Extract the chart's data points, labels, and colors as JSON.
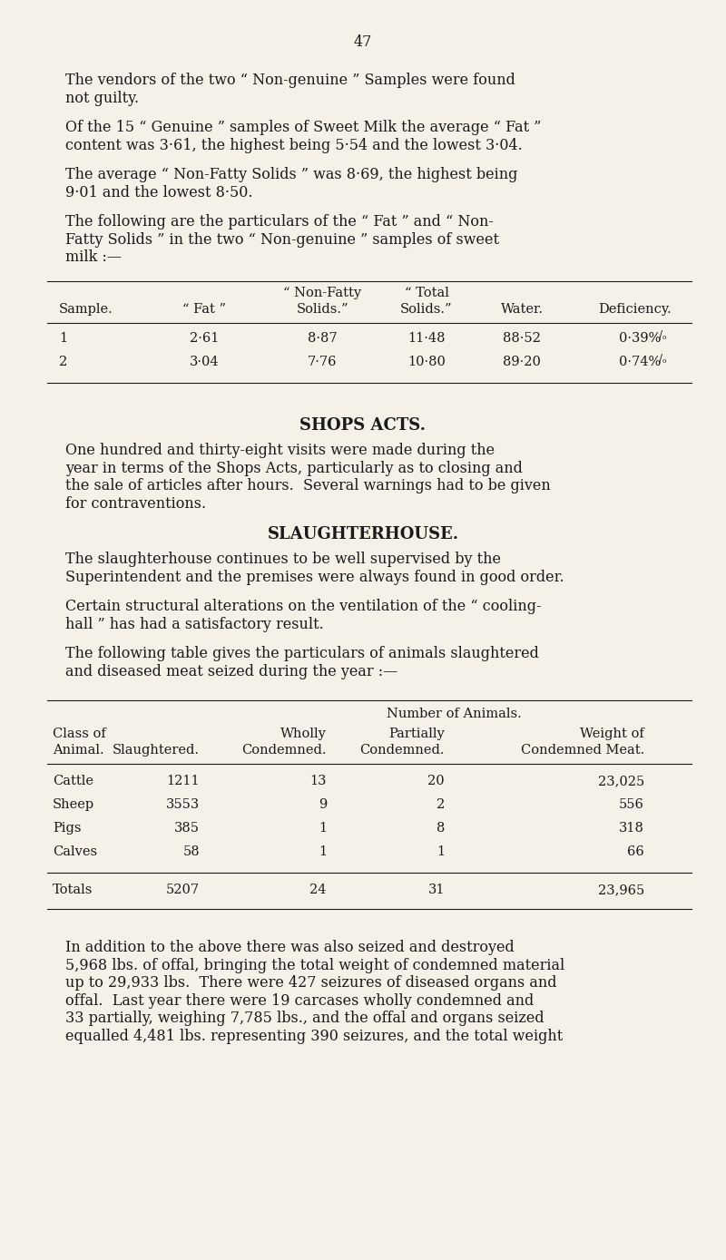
{
  "bg_color": "#f5f0e8",
  "text_color": "#1a1a1a",
  "page_number": "47",
  "paragraphs": [
    "The vendors of the two “ Non-genuine ” Samples were found\nnot guilty.",
    "Of the 15 “ Genuine ” samples of Sweet Milk the average “ Fat ”\ncontent was 3·61, the highest being 5·54 and the lowest 3·04.",
    "The average “ Non-Fatty Solids ” was 8·69, the highest being\n9·01 and the lowest 8·50.",
    "The following are the particulars of the “ Fat ” and “ Non-\nFatty Solids ” in the two “ Non-genuine ” samples of sweet\nmilk :—"
  ],
  "table1_headers_row1": [
    "",
    "“ Non-Fatty",
    "“ Total",
    "",
    ""
  ],
  "table1_headers_row2": [
    "Sample.",
    "“ Fat ”",
    "Solids.”",
    "Solids.”",
    "Water.",
    "Deficiency."
  ],
  "table1_rows": [
    [
      "1",
      "2·61",
      "8·87",
      "11·48",
      "88·52",
      "0·39%"
    ],
    [
      "2",
      "3·04",
      "7·76",
      "10·80",
      "89·20",
      "0·74%"
    ]
  ],
  "section1_title": "SHOPS ACTS.",
  "section1_text": "One hundred and thirty-eight visits were made during the\nyear in terms of the Shops Acts, particularly as to closing and\nthe sale of articles after hours.  Several warnings had to be given\nfor contraventions.",
  "section2_title": "SLAUGHTERHOUSE.",
  "section2_paras": [
    "The slaughterhouse continues to be well supervised by the\nSuperintendent and the premises were always found in good order.",
    "Certain structural alterations on the ventilation of the “ cooling-\nhall ” has had a satisfactory result.",
    "The following table gives the particulars of animals slaughtered\nand diseased meat seized during the year :—"
  ],
  "table2_header1": "Number of Animals.",
  "table2_col_header1": [
    "Class of",
    "Animal."
  ],
  "table2_col_header2": [
    "",
    "Slaughtered."
  ],
  "table2_col_header3": [
    "Wholly",
    "Condemned."
  ],
  "table2_col_header4": [
    "Partially",
    "Condemned."
  ],
  "table2_col_header5": [
    "Weight of",
    "Condemned Meat."
  ],
  "table2_rows": [
    [
      "Cattle",
      "1211",
      "13",
      "20",
      "23,025"
    ],
    [
      "Sheep",
      "3553",
      "9",
      "2",
      "556"
    ],
    [
      "Pigs",
      "385",
      "1",
      "8",
      "318"
    ],
    [
      "Calves",
      "58",
      "1",
      "1",
      "66"
    ]
  ],
  "table2_totals": [
    "Totals",
    "5207",
    "24",
    "31",
    "23,965"
  ],
  "final_para": "In addition to the above there was also seized and destroyed\n5,968 lbs. of offal, bringing the total weight of condemned material\nup to 29,933 lbs.  There were 427 seizures of diseased organs and\noffal.  Last year there were 19 carcases wholly condemned and\n33 partially, weighing 7,785 lbs., and the offal and organs seized\nequalled 4,481 lbs. representing 390 seizures, and the total weight"
}
